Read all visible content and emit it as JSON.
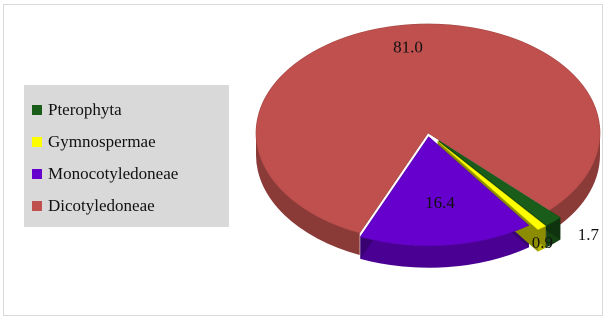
{
  "chart_data": {
    "type": "pie",
    "style": "3d-exploded",
    "title": "",
    "legend_position": "left",
    "categories": [
      "Pterophyta",
      "Gymnospermae",
      "Monocotyledoneae",
      "Dicotyledoneae"
    ],
    "values": [
      1.7,
      0.9,
      16.4,
      81.0
    ],
    "value_labels": [
      "1.7",
      "0.9",
      "16.4",
      "81.0"
    ],
    "colors": [
      "#1a5c1a",
      "#ffff00",
      "#6600cc",
      "#c0504d"
    ]
  }
}
